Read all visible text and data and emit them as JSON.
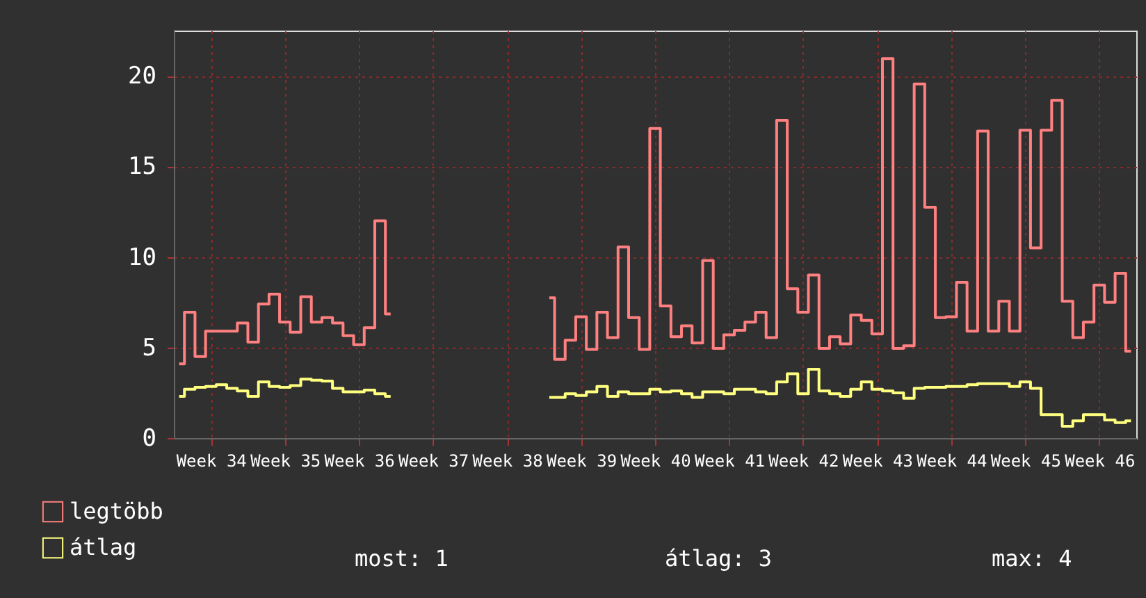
{
  "chart_data": {
    "type": "step",
    "categories": [
      null,
      null,
      null,
      "Week 34",
      null,
      null,
      null,
      null,
      null,
      null,
      "Week 35",
      null,
      null,
      null,
      null,
      null,
      null,
      "Week 36",
      null,
      null,
      null,
      null,
      null,
      null,
      "Week 37",
      null,
      null,
      null,
      null,
      null,
      null,
      "Week 38",
      null,
      null,
      null,
      null,
      null,
      null,
      "Week 39",
      null,
      null,
      null,
      null,
      null,
      null,
      "Week 40",
      null,
      null,
      null,
      null,
      null,
      null,
      "Week 41",
      null,
      null,
      null,
      null,
      null,
      null,
      "Week 42",
      null,
      null,
      null,
      null,
      null,
      null,
      "Week 43",
      null,
      null,
      null,
      null,
      null,
      null,
      "Week 44",
      null,
      null,
      null,
      null,
      null,
      null,
      "Week 45",
      null,
      null,
      null,
      null,
      null,
      null,
      "Week 46",
      null,
      null,
      null
    ],
    "ylim": [
      0,
      22.5
    ],
    "yticks": [
      0,
      5,
      10,
      15,
      20
    ],
    "grid": true,
    "legend": "bottom left",
    "line_style": "solid",
    "marker": "none",
    "annotations": [
      "most: 1",
      "átlag: 3",
      "max: 4"
    ],
    "series": [
      {
        "name": "legtöbb",
        "color": "#ff8080",
        "values": [
          4.1,
          6.95,
          4.5,
          5.9,
          5.9,
          5.9,
          6.35,
          5.3,
          7.4,
          7.95,
          6.4,
          5.85,
          7.8,
          6.4,
          6.65,
          6.35,
          5.65,
          5.15,
          6.1,
          12.0,
          6.85,
          null,
          null,
          null,
          null,
          null,
          null,
          null,
          null,
          null,
          null,
          null,
          null,
          null,
          null,
          7.75,
          4.35,
          5.4,
          6.7,
          4.9,
          6.95,
          5.55,
          10.55,
          6.65,
          4.9,
          17.1,
          7.3,
          5.6,
          6.2,
          5.25,
          9.8,
          4.95,
          5.7,
          5.95,
          6.4,
          6.95,
          5.55,
          17.55,
          8.25,
          6.95,
          9.0,
          4.95,
          5.6,
          5.2,
          6.8,
          6.5,
          5.75,
          20.95,
          4.95,
          5.1,
          19.55,
          12.75,
          6.65,
          6.7,
          8.6,
          5.9,
          16.95,
          5.9,
          7.55,
          5.9,
          17.0,
          10.5,
          17.0,
          18.65,
          7.55,
          5.55,
          6.4,
          8.45,
          7.5,
          9.1,
          4.8
        ]
      },
      {
        "name": "átlag",
        "color": "#ffff80",
        "values": [
          2.3,
          2.7,
          2.8,
          2.85,
          2.95,
          2.75,
          2.6,
          2.3,
          3.1,
          2.85,
          2.8,
          2.9,
          3.25,
          3.2,
          3.15,
          2.75,
          2.55,
          2.55,
          2.65,
          2.45,
          2.3,
          null,
          null,
          null,
          null,
          null,
          null,
          null,
          null,
          null,
          null,
          null,
          null,
          null,
          null,
          2.25,
          2.25,
          2.45,
          2.35,
          2.55,
          2.85,
          2.3,
          2.55,
          2.45,
          2.45,
          2.7,
          2.55,
          2.6,
          2.45,
          2.25,
          2.55,
          2.55,
          2.45,
          2.7,
          2.7,
          2.55,
          2.45,
          3.1,
          3.55,
          2.45,
          3.8,
          2.6,
          2.45,
          2.3,
          2.7,
          3.1,
          2.7,
          2.6,
          2.5,
          2.2,
          2.75,
          2.8,
          2.8,
          2.85,
          2.85,
          2.95,
          3.0,
          3.0,
          3.0,
          2.85,
          3.1,
          2.75,
          1.3,
          1.3,
          0.65,
          0.95,
          1.3,
          1.3,
          1.0,
          0.85,
          0.95
        ]
      }
    ]
  }
}
